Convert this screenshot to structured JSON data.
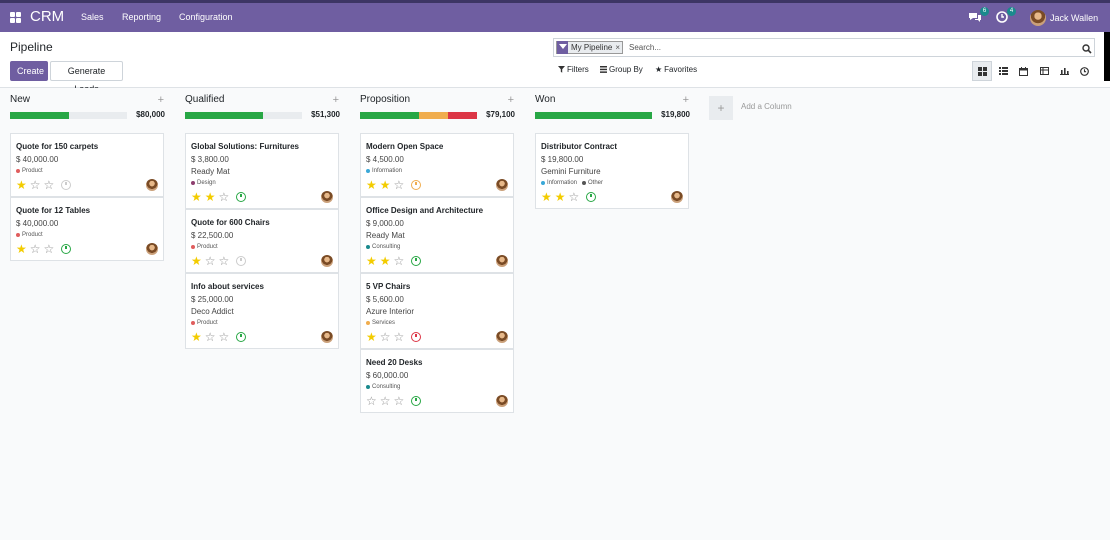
{
  "topbar": {
    "brand": "CRM",
    "menu": [
      "Sales",
      "Reporting",
      "Configuration"
    ],
    "messages_count": "6",
    "activities_count": "4",
    "user_name": "Jack Wallen"
  },
  "control_panel": {
    "title": "Pipeline",
    "create_label": "Create",
    "generate_leads_label": "Generate Leads",
    "facet_label": "My Pipeline",
    "facet_close": "×",
    "search_placeholder": "Search...",
    "filters_label": "Filters",
    "group_by_label": "Group By",
    "favorites_label": "Favorites",
    "views": [
      "kanban",
      "list",
      "calendar",
      "pivot",
      "graph",
      "activity"
    ],
    "active_view": "kanban"
  },
  "colors": {
    "brand": "#6f5ea1",
    "green": "#28a745",
    "orange": "#f0ad4e",
    "red": "#dc3545",
    "star": "#f3cc00"
  },
  "kanban": {
    "add_column_label": "Add a Column",
    "columns": [
      {
        "name": "New",
        "total": "$80,000",
        "progress": [
          {
            "color": "green",
            "percent": 50
          }
        ],
        "cards": [
          {
            "title": "Quote for 150 carpets",
            "amount": "$ 40,000.00",
            "customer": "",
            "tags": [
              {
                "label": "Product",
                "color": "#e05d5d"
              }
            ],
            "stars": 1,
            "activity": "none"
          },
          {
            "title": "Quote for 12 Tables",
            "amount": "$ 40,000.00",
            "customer": "",
            "tags": [
              {
                "label": "Product",
                "color": "#e05d5d"
              }
            ],
            "stars": 1,
            "activity": "planned"
          }
        ]
      },
      {
        "name": "Qualified",
        "total": "$51,300",
        "progress": [
          {
            "color": "green",
            "percent": 67
          }
        ],
        "cards": [
          {
            "title": "Global Solutions: Furnitures",
            "amount": "$ 3,800.00",
            "customer": "Ready Mat",
            "tags": [
              {
                "label": "Design",
                "color": "#8e3f6f"
              }
            ],
            "stars": 2,
            "activity": "planned"
          },
          {
            "title": "Quote for 600 Chairs",
            "amount": "$ 22,500.00",
            "customer": "",
            "tags": [
              {
                "label": "Product",
                "color": "#e05d5d"
              }
            ],
            "stars": 1,
            "activity": "none"
          },
          {
            "title": "Info about services",
            "amount": "$ 25,000.00",
            "customer": "Deco Addict",
            "tags": [
              {
                "label": "Product",
                "color": "#e05d5d"
              }
            ],
            "stars": 1,
            "activity": "planned"
          }
        ]
      },
      {
        "name": "Proposition",
        "total": "$79,100",
        "progress": [
          {
            "color": "green",
            "percent": 50
          },
          {
            "color": "orange",
            "percent": 25
          },
          {
            "color": "red",
            "percent": 25
          }
        ],
        "cards": [
          {
            "title": "Modern Open Space",
            "amount": "$ 4,500.00",
            "customer": "",
            "tags": [
              {
                "label": "Information",
                "color": "#3aa8d8"
              }
            ],
            "stars": 2,
            "activity": "today"
          },
          {
            "title": "Office Design and Architecture",
            "amount": "$ 9,000.00",
            "customer": "Ready Mat",
            "tags": [
              {
                "label": "Consulting",
                "color": "#1a8a8d"
              }
            ],
            "stars": 2,
            "activity": "planned"
          },
          {
            "title": "5 VP Chairs",
            "amount": "$ 5,600.00",
            "customer": "Azure Interior",
            "tags": [
              {
                "label": "Services",
                "color": "#f0ad4e"
              }
            ],
            "stars": 1,
            "activity": "overdue"
          },
          {
            "title": "Need 20 Desks",
            "amount": "$ 60,000.00",
            "customer": "",
            "tags": [
              {
                "label": "Consulting",
                "color": "#1a8a8d"
              }
            ],
            "stars": 0,
            "activity": "planned"
          }
        ]
      },
      {
        "name": "Won",
        "total": "$19,800",
        "progress": [
          {
            "color": "green",
            "percent": 100
          }
        ],
        "cards": [
          {
            "title": "Distributor Contract",
            "amount": "$ 19,800.00",
            "customer": "Gemini Furniture",
            "tags": [
              {
                "label": "Information",
                "color": "#3aa8d8"
              },
              {
                "label": "Other",
                "color": "#555555"
              }
            ],
            "stars": 2,
            "activity": "planned"
          }
        ]
      }
    ]
  }
}
